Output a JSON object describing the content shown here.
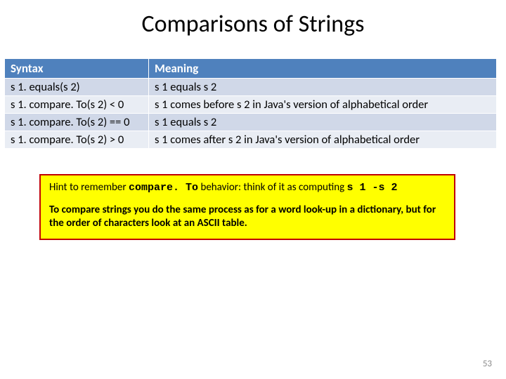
{
  "title": "Comparisons of Strings",
  "table": {
    "header_bg": "#4f81bd",
    "header_fg": "#ffffff",
    "band_a_bg": "#d0d8e8",
    "band_b_bg": "#e9edf4",
    "columns": [
      "Syntax",
      "Meaning"
    ],
    "rows": [
      [
        "s 1. equals(s 2)",
        "s 1 equals s 2"
      ],
      [
        "s 1. compare. To(s 2)  <  0",
        "s 1 comes before s 2 in Java's version of alphabetical order"
      ],
      [
        "s 1. compare. To(s 2)  == 0",
        "s 1 equals s 2"
      ],
      [
        "s 1. compare. To(s 2)  >  0",
        "s 1 comes after s 2 in Java's version of alphabetical order"
      ]
    ]
  },
  "hint": {
    "border_color": "#c00000",
    "bg_color": "#ffff00",
    "line1_prefix": "Hint to remember ",
    "line1_code": "compare. To",
    "line1_mid": " behavior:  think of it as computing  ",
    "line1_expr": "s 1 -s 2",
    "line2": "To compare strings you do the same process as for a word look-up in a dictionary, but for the order of characters look at an ASCII table."
  },
  "page_number": "53"
}
